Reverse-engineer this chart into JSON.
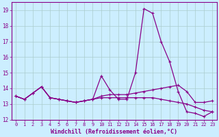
{
  "xlabel": "Windchill (Refroidissement éolien,°C)",
  "background_color": "#cceeff",
  "grid_color": "#aacccc",
  "line_color": "#880088",
  "x_values": [
    0,
    1,
    2,
    3,
    4,
    5,
    6,
    7,
    8,
    9,
    10,
    11,
    12,
    13,
    14,
    15,
    16,
    17,
    18,
    19,
    20,
    21,
    22,
    23
  ],
  "line1_y": [
    13.5,
    13.3,
    13.7,
    14.1,
    13.4,
    13.3,
    13.2,
    13.1,
    13.2,
    13.3,
    14.8,
    13.9,
    13.3,
    13.3,
    15.0,
    19.1,
    18.8,
    17.0,
    15.7,
    13.8,
    12.5,
    12.4,
    12.2,
    12.5
  ],
  "line2_y": [
    13.5,
    13.3,
    13.7,
    14.1,
    13.4,
    13.3,
    13.2,
    13.1,
    13.2,
    13.3,
    13.5,
    13.6,
    13.6,
    13.6,
    13.7,
    13.8,
    13.9,
    14.0,
    14.1,
    14.2,
    13.8,
    13.1,
    13.1,
    13.2
  ],
  "line3_y": [
    13.5,
    13.3,
    13.7,
    14.1,
    13.4,
    13.3,
    13.2,
    13.1,
    13.2,
    13.3,
    13.4,
    13.4,
    13.4,
    13.4,
    13.4,
    13.4,
    13.4,
    13.3,
    13.2,
    13.1,
    13.0,
    12.8,
    12.6,
    12.5
  ],
  "ylim_min": 12,
  "ylim_max": 19.5,
  "xlim_min": -0.5,
  "xlim_max": 23.5,
  "xtick_fontsize": 5.0,
  "ytick_fontsize": 5.5,
  "xlabel_fontsize": 6.0
}
